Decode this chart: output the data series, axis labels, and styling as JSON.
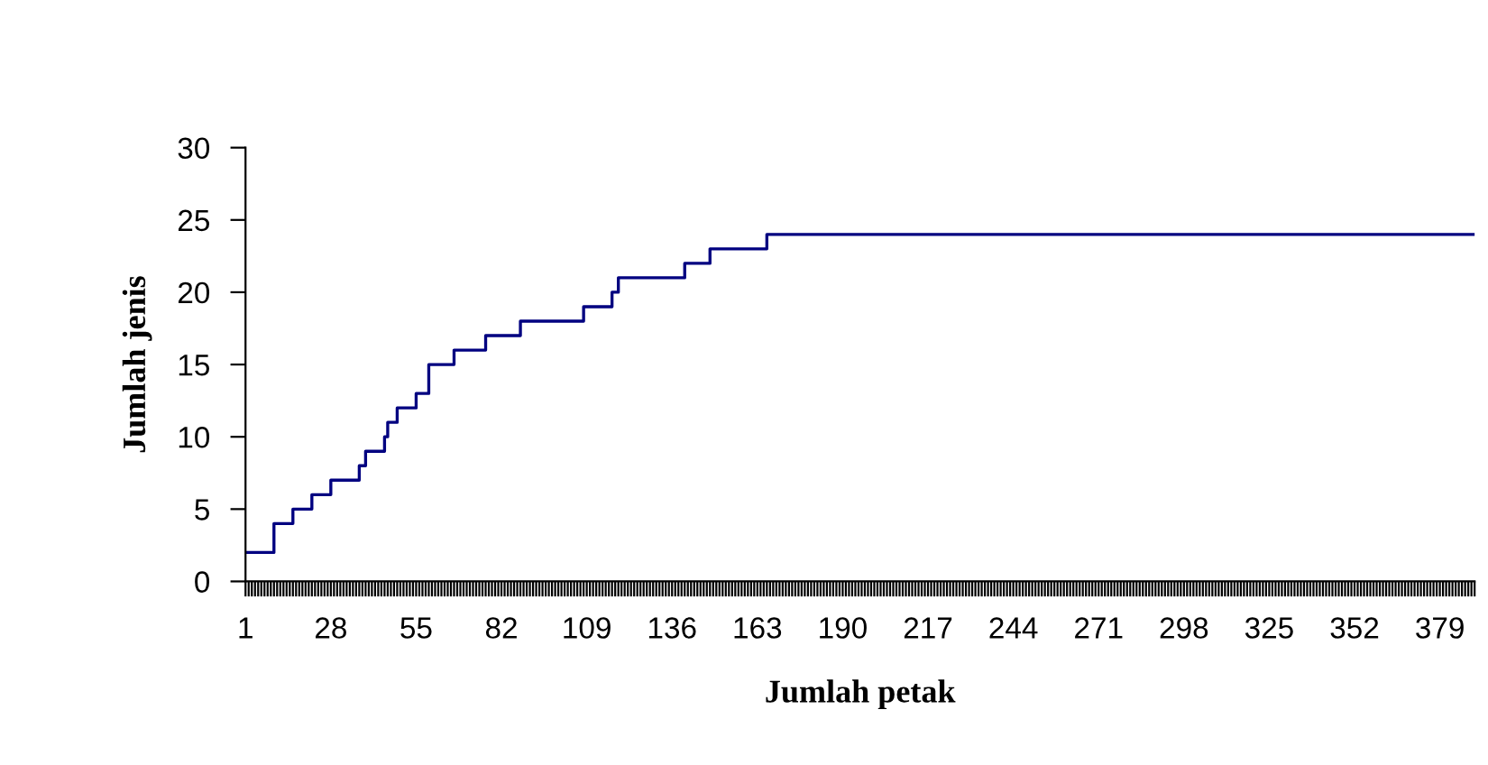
{
  "chart_data": {
    "type": "step",
    "xlabel": "Jumlah petak",
    "ylabel": "Jumlah jenis",
    "series": [
      {
        "color": "#000080",
        "x": [
          1,
          10,
          16,
          22,
          28,
          37,
          39,
          45,
          46,
          49,
          55,
          59,
          67,
          77,
          88,
          108,
          117,
          119,
          140,
          148,
          166,
          390
        ],
        "values": [
          2,
          4,
          5,
          6,
          7,
          8,
          9,
          10,
          11,
          12,
          13,
          15,
          16,
          17,
          18,
          19,
          20,
          21,
          22,
          23,
          24,
          24
        ]
      }
    ],
    "xlim": [
      1,
      390
    ],
    "xticks": [
      1,
      28,
      55,
      82,
      109,
      136,
      163,
      190,
      217,
      244,
      271,
      298,
      325,
      352,
      379
    ],
    "ylim": [
      0,
      30
    ],
    "yticks": [
      0,
      5,
      10,
      15,
      20,
      25,
      30
    ],
    "grid": false,
    "legend": false,
    "marker": "none",
    "line_style": "solid"
  }
}
